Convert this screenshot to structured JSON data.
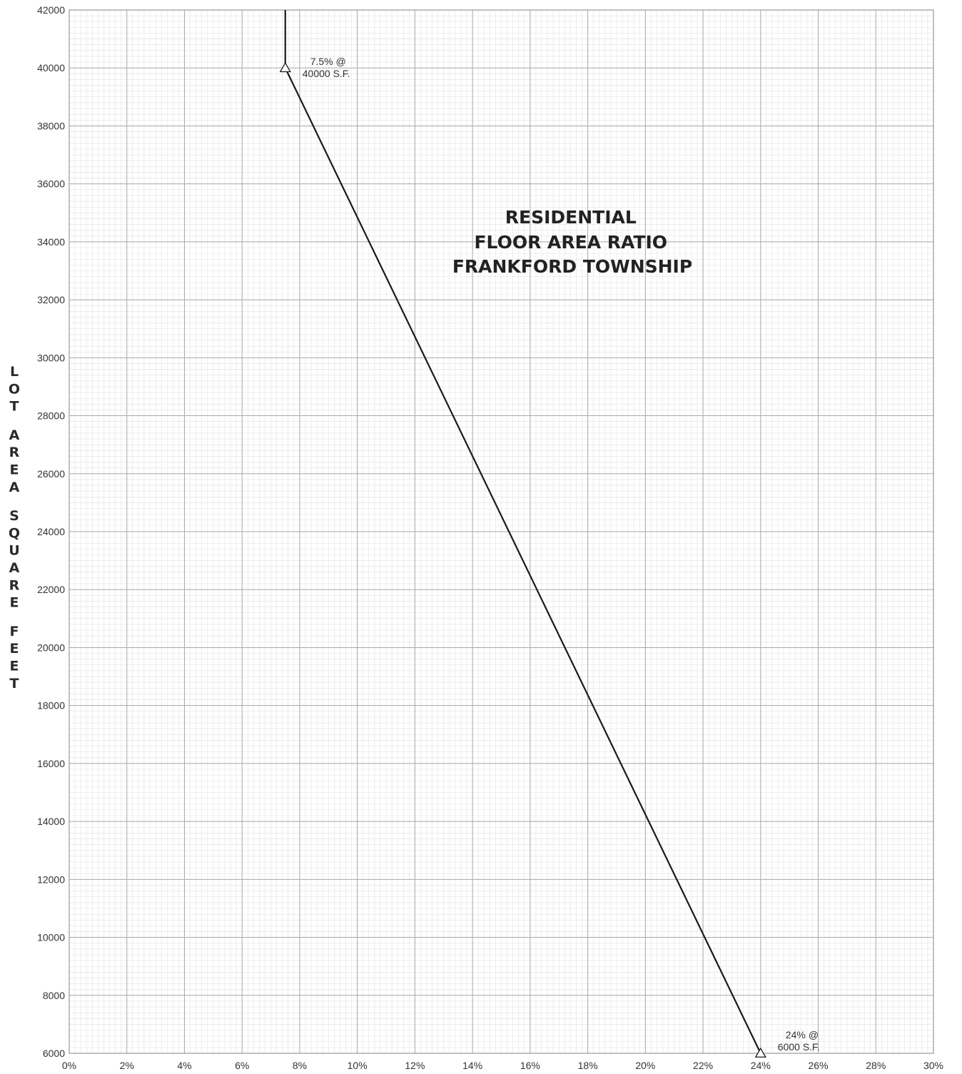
{
  "chart_data": {
    "type": "line",
    "title_lines": [
      "RESIDENTIAL",
      "FLOOR AREA RATIO",
      "FRANKFORD TOWNSHIP"
    ],
    "xlabel": "",
    "ylabel": "LOT AREA SQUARE FEET",
    "x_unit": "%",
    "xlim": [
      0,
      30
    ],
    "ylim": [
      6000,
      42000
    ],
    "x_ticks": [
      0,
      2,
      4,
      6,
      8,
      10,
      12,
      14,
      16,
      18,
      20,
      22,
      24,
      26,
      28,
      30
    ],
    "x_tick_labels": [
      "0%",
      "2%",
      "4%",
      "6%",
      "8%",
      "10%",
      "12%",
      "14%",
      "16%",
      "18%",
      "20%",
      "22%",
      "24%",
      "26%",
      "28%",
      "30%"
    ],
    "y_ticks": [
      6000,
      8000,
      10000,
      12000,
      14000,
      16000,
      18000,
      20000,
      22000,
      24000,
      26000,
      28000,
      30000,
      32000,
      34000,
      36000,
      38000,
      40000,
      42000
    ],
    "y_tick_labels": [
      "6000",
      "8000",
      "10000",
      "12000",
      "14000",
      "16000",
      "18000",
      "20000",
      "22000",
      "24000",
      "26000",
      "28000",
      "30000",
      "32000",
      "34000",
      "36000",
      "38000",
      "40000",
      "42000"
    ],
    "grid": true,
    "series": [
      {
        "points": [
          {
            "x": 7.5,
            "y": 42000
          },
          {
            "x": 7.5,
            "y": 40000
          },
          {
            "x": 24,
            "y": 6000
          }
        ]
      }
    ],
    "markers": [
      {
        "x": 7.5,
        "y": 40000,
        "shape": "triangle"
      },
      {
        "x": 24,
        "y": 6000,
        "shape": "triangle"
      }
    ],
    "annotations": [
      {
        "x": 7.5,
        "y": 40000,
        "lines": [
          "7.5% @",
          "40000 S.F."
        ]
      },
      {
        "x": 24,
        "y": 6000,
        "lines": [
          "24% @",
          "6000 S.F."
        ]
      }
    ],
    "colors": {
      "line": "#1a1a1a",
      "major_grid": "#a8a8a8",
      "minor_grid": "#e2e2e2",
      "frame": "#9a9a9a"
    }
  }
}
